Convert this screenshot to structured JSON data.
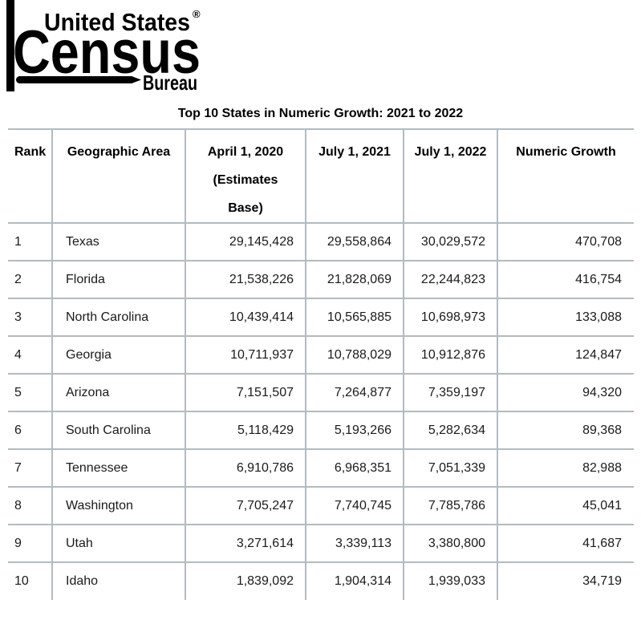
{
  "logo": {
    "united_states": "United States",
    "registered": "®",
    "census": "Census",
    "bureau": "Bureau"
  },
  "chart_data": {
    "type": "table",
    "title": "Top 10 States in Numeric Growth: 2021 to 2022",
    "columns": [
      "Rank",
      "Geographic Area",
      "April 1, 2020 (Estimates Base)",
      "July 1, 2021",
      "July 1, 2022",
      "Numeric Growth"
    ],
    "header_lines": [
      [
        "Rank"
      ],
      [
        "Geographic Area"
      ],
      [
        "April 1, 2020",
        "(Estimates",
        "Base)"
      ],
      [
        "July 1, 2021"
      ],
      [
        "July 1, 2022"
      ],
      [
        "Numeric Growth"
      ]
    ],
    "rows": [
      [
        "1",
        "Texas",
        "29,145,428",
        "29,558,864",
        "30,029,572",
        "470,708"
      ],
      [
        "2",
        "Florida",
        "21,538,226",
        "21,828,069",
        "22,244,823",
        "416,754"
      ],
      [
        "3",
        "North Carolina",
        "10,439,414",
        "10,565,885",
        "10,698,973",
        "133,088"
      ],
      [
        "4",
        "Georgia",
        "10,711,937",
        "10,788,029",
        "10,912,876",
        "124,847"
      ],
      [
        "5",
        "Arizona",
        "7,151,507",
        "7,264,877",
        "7,359,197",
        "94,320"
      ],
      [
        "6",
        "South Carolina",
        "5,118,429",
        "5,193,266",
        "5,282,634",
        "89,368"
      ],
      [
        "7",
        "Tennessee",
        "6,910,786",
        "6,968,351",
        "7,051,339",
        "82,988"
      ],
      [
        "8",
        "Washington",
        "7,705,247",
        "7,740,745",
        "7,785,786",
        "45,041"
      ],
      [
        "9",
        "Utah",
        "3,271,614",
        "3,339,113",
        "3,380,800",
        "41,687"
      ],
      [
        "10",
        "Idaho",
        "1,839,092",
        "1,904,314",
        "1,939,033",
        "34,719"
      ]
    ]
  },
  "colors": {
    "border": "#b2bbc0",
    "text": "#1a1a1a",
    "logo": "#000000"
  }
}
